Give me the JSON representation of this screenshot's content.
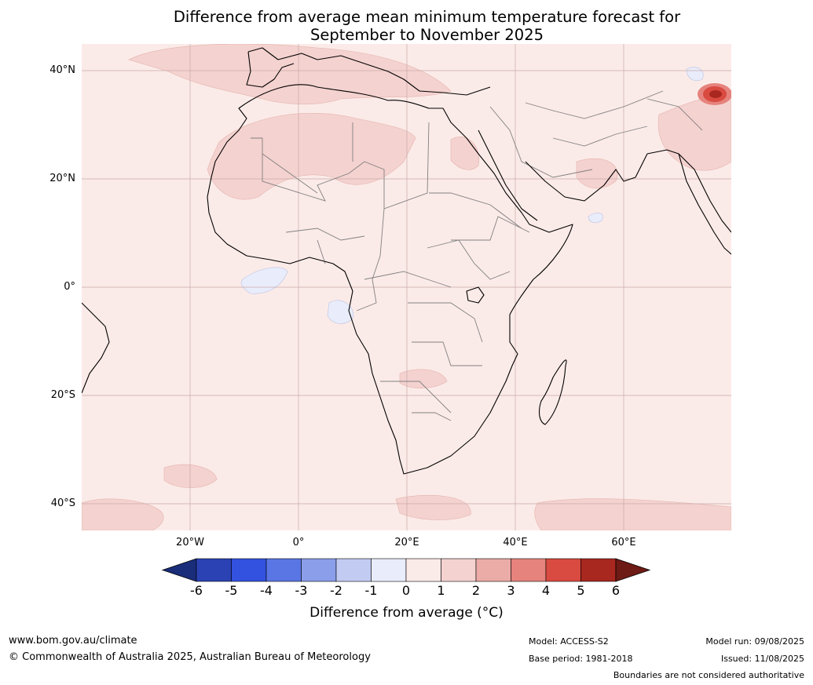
{
  "title_line1": "Difference from average mean minimum temperature forecast for",
  "title_line2": "September to November 2025",
  "latitude_labels": [
    "40°N",
    "20°N",
    "0°",
    "20°S",
    "40°S"
  ],
  "longitude_labels": [
    "20°W",
    "0°",
    "20°E",
    "40°E",
    "60°E"
  ],
  "colorbar": {
    "label": "Difference from average (°C)",
    "ticks": [
      "-6",
      "-5",
      "-4",
      "-3",
      "-2",
      "-1",
      "0",
      "1",
      "2",
      "3",
      "4",
      "5",
      "6"
    ],
    "colors": [
      "#1a2d7a",
      "#2a42b3",
      "#3352e0",
      "#5a75e4",
      "#8a9eea",
      "#c2cbf2",
      "#e9ecfa",
      "#fbebe8",
      "#f4d2cf",
      "#ebaba6",
      "#e5837c",
      "#d94a40",
      "#a8271f",
      "#6e1a15"
    ]
  },
  "footer": {
    "website": "www.bom.gov.au/climate",
    "copyright": "© Commonwealth of Australia 2025, Australian Bureau of Meteorology",
    "model": "Model: ACCESS-S2",
    "base_period": "Base period: 1981-2018",
    "model_run": "Model run: 09/08/2025",
    "issued": "Issued: 11/08/2025",
    "disclaimer": "Boundaries are not considered authoritative"
  },
  "colors": {
    "map_background": "#fbebe8",
    "warm_anomaly": "#f4d2cf",
    "hot_anomaly": "#d94a40",
    "cool_anomaly": "#e9ecfa",
    "coastline": "#000000",
    "borders": "#808080",
    "gridlines": "#c8aaaa"
  }
}
